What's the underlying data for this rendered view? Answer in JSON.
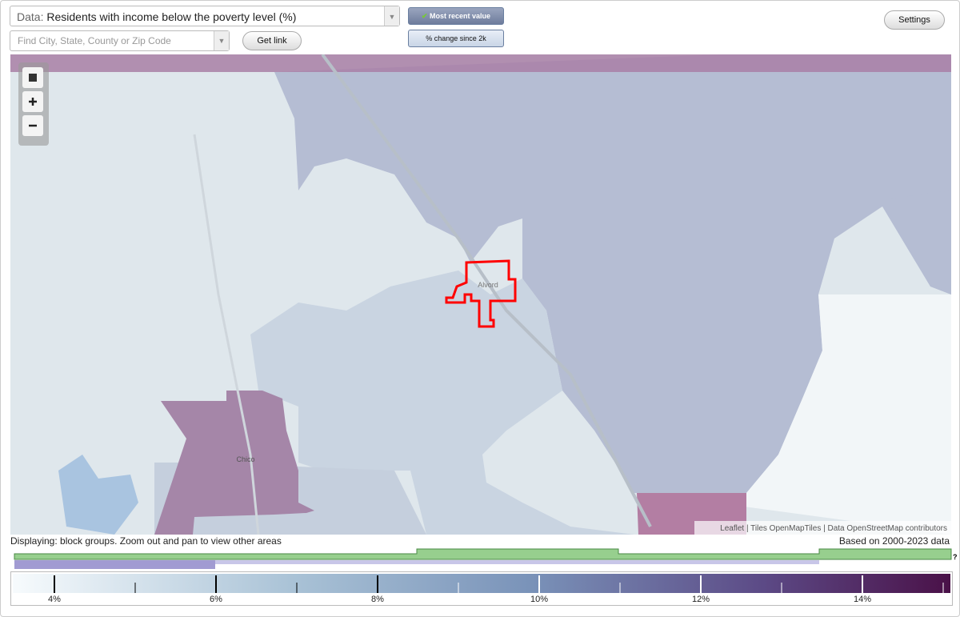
{
  "header": {
    "data_label": "Data:",
    "data_value": "Residents with income below the poverty level (%)",
    "search_placeholder": "Find City, State, County or Zip Code",
    "get_link": "Get link",
    "mode_recent": "Most recent value",
    "mode_change": "% change since 2k",
    "settings": "Settings"
  },
  "map": {
    "places": [
      "Alvord",
      "Chico"
    ],
    "attribution": "Leaflet | Tiles OpenMapTiles | Data OpenStreetMap contributors"
  },
  "footer": {
    "displaying": "Displaying: block groups. Zoom out and pan to view other areas",
    "based_on": "Based on 2000-2023 data",
    "help": "?"
  },
  "legend": {
    "ticks": [
      "4%",
      "6%",
      "8%",
      "10%",
      "12%",
      "14%"
    ]
  }
}
